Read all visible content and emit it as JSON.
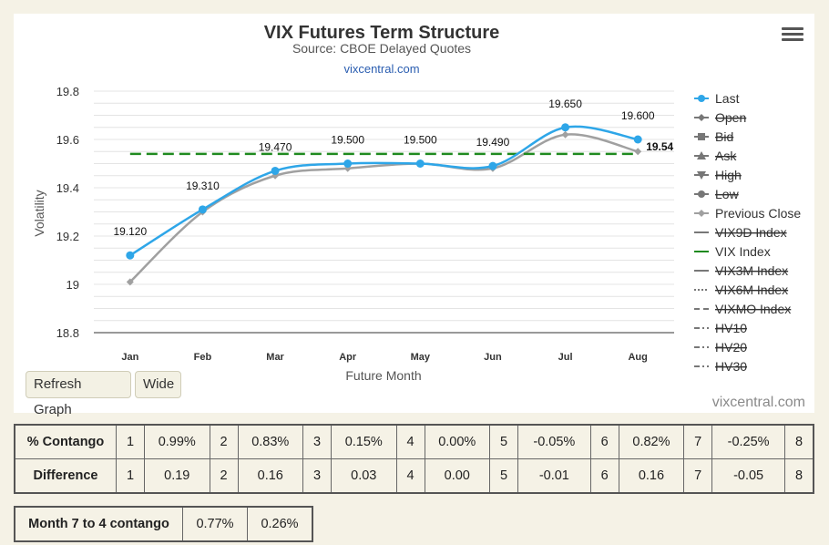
{
  "chart_data": {
    "type": "line",
    "title": "VIX Futures Term Structure",
    "subtitle": "Source: CBOE Delayed Quotes",
    "link": "vixcentral.com",
    "xlabel": "Future Month",
    "ylabel": "Volatility",
    "categories": [
      "Jan",
      "Feb",
      "Mar",
      "Apr",
      "May",
      "Jun",
      "Jul",
      "Aug"
    ],
    "yticks": [
      "19.8",
      "19.6",
      "19.4",
      "19.2",
      "19",
      "18.8"
    ],
    "ylim": [
      18.8,
      19.8
    ],
    "grid": true,
    "legend_position": "right",
    "series": [
      {
        "name": "Last",
        "values": [
          19.12,
          19.31,
          19.47,
          19.5,
          19.5,
          19.49,
          19.65,
          19.6
        ],
        "labels": [
          "19.120",
          "19.310",
          "19.470",
          "19.500",
          "19.500",
          "19.490",
          "19.650",
          "19.600"
        ],
        "color": "#2ea6e8"
      },
      {
        "name": "Previous Close",
        "values": [
          19.01,
          19.3,
          19.45,
          19.48,
          19.5,
          19.48,
          19.62,
          19.55
        ],
        "color": "#a0a0a0"
      },
      {
        "name": "VIX Index",
        "value": 19.54,
        "label": "19.54",
        "color": "#1f8a1f",
        "style": "dashed"
      }
    ],
    "legend": [
      {
        "name": "Last",
        "enabled": true,
        "symbol": "circle",
        "color": "#2ea6e8"
      },
      {
        "name": "Open",
        "enabled": false,
        "symbol": "diamond",
        "color": "#555555"
      },
      {
        "name": "Bid",
        "enabled": false,
        "symbol": "square",
        "color": "#555555"
      },
      {
        "name": "Ask",
        "enabled": false,
        "symbol": "triangle",
        "color": "#555555"
      },
      {
        "name": "High",
        "enabled": false,
        "symbol": "triangle-down",
        "color": "#555555"
      },
      {
        "name": "Low",
        "enabled": false,
        "symbol": "circle",
        "color": "#555555"
      },
      {
        "name": "Previous Close",
        "enabled": true,
        "symbol": "diamond",
        "color": "#a0a0a0"
      },
      {
        "name": "VIX9D Index",
        "enabled": false,
        "symbol": "line",
        "color": "#777777"
      },
      {
        "name": "VIX Index",
        "enabled": true,
        "symbol": "line",
        "color": "#1f8a1f"
      },
      {
        "name": "VIX3M Index",
        "enabled": false,
        "symbol": "line",
        "color": "#777777"
      },
      {
        "name": "VIX6M Index",
        "enabled": false,
        "symbol": "dotted",
        "color": "#777777"
      },
      {
        "name": "VIXMO Index",
        "enabled": false,
        "symbol": "dashed",
        "color": "#777777"
      },
      {
        "name": "HV10",
        "enabled": false,
        "symbol": "dashdot",
        "color": "#777777"
      },
      {
        "name": "HV20",
        "enabled": false,
        "symbol": "dashdot",
        "color": "#777777"
      },
      {
        "name": "HV30",
        "enabled": false,
        "symbol": "dashdot",
        "color": "#777777"
      }
    ]
  },
  "buttons": {
    "refresh": "Refresh Graph",
    "wide": "Wide"
  },
  "watermark": "vixcentral.com",
  "contango": {
    "row1": {
      "label": "% Contango",
      "cells": [
        [
          "1",
          "0.99%"
        ],
        [
          "2",
          "0.83%"
        ],
        [
          "3",
          "0.15%"
        ],
        [
          "4",
          "0.00%"
        ],
        [
          "5",
          "-0.05%"
        ],
        [
          "6",
          "0.82%"
        ],
        [
          "7",
          "-0.25%"
        ]
      ],
      "last": "8"
    },
    "row2": {
      "label": "Difference",
      "cells": [
        [
          "1",
          "0.19"
        ],
        [
          "2",
          "0.16"
        ],
        [
          "3",
          "0.03"
        ],
        [
          "4",
          "0.00"
        ],
        [
          "5",
          "-0.01"
        ],
        [
          "6",
          "0.16"
        ],
        [
          "7",
          "-0.05"
        ]
      ],
      "last": "8"
    }
  },
  "summary": {
    "label": "Month 7 to 4 contango",
    "values": [
      "0.77%",
      "0.26%"
    ]
  }
}
